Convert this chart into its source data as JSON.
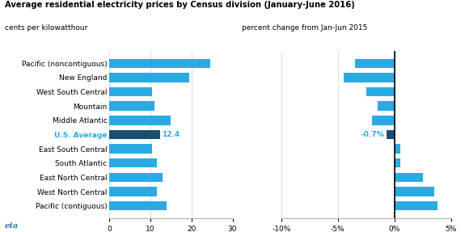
{
  "title": "Average residential electricity prices by Census division (January-June 2016)",
  "subtitle_left": "cents per kilowatthour",
  "subtitle_right": "percent change from Jan-Jun 2015",
  "categories": [
    "Pacific (noncontiguous)",
    "New England",
    "West South Central",
    "Mountain",
    "Middle Atlantic",
    "U.S. Average",
    "East South Central",
    "South Atlantic",
    "East North Central",
    "West North Central",
    "Pacific (contiguous)"
  ],
  "prices": [
    24.5,
    19.5,
    10.5,
    11.0,
    15.0,
    12.4,
    10.5,
    11.5,
    13.0,
    11.5,
    14.0
  ],
  "pct_changes": [
    -3.5,
    -4.5,
    -2.5,
    -1.5,
    -2.0,
    -0.7,
    0.5,
    0.5,
    2.5,
    3.5,
    3.8
  ],
  "bar_color": "#29ABE2",
  "avg_bar_color": "#1B4F72",
  "avg_label_color": "#29ABE2",
  "avg_index": 5,
  "price_annotation": "12.4",
  "pct_annotation": "-0.7%",
  "xlim_prices": [
    0,
    30
  ],
  "xticks_prices": [
    0,
    10,
    20,
    30
  ],
  "xlim_pct": [
    -0.1,
    0.05
  ],
  "xticks_pct": [
    -0.1,
    -0.05,
    0.0,
    0.05
  ],
  "xticklabels_pct": [
    "-10%",
    "-5%",
    "0%",
    "5%"
  ],
  "background_color": "#ffffff",
  "grid_color": "#cccccc"
}
